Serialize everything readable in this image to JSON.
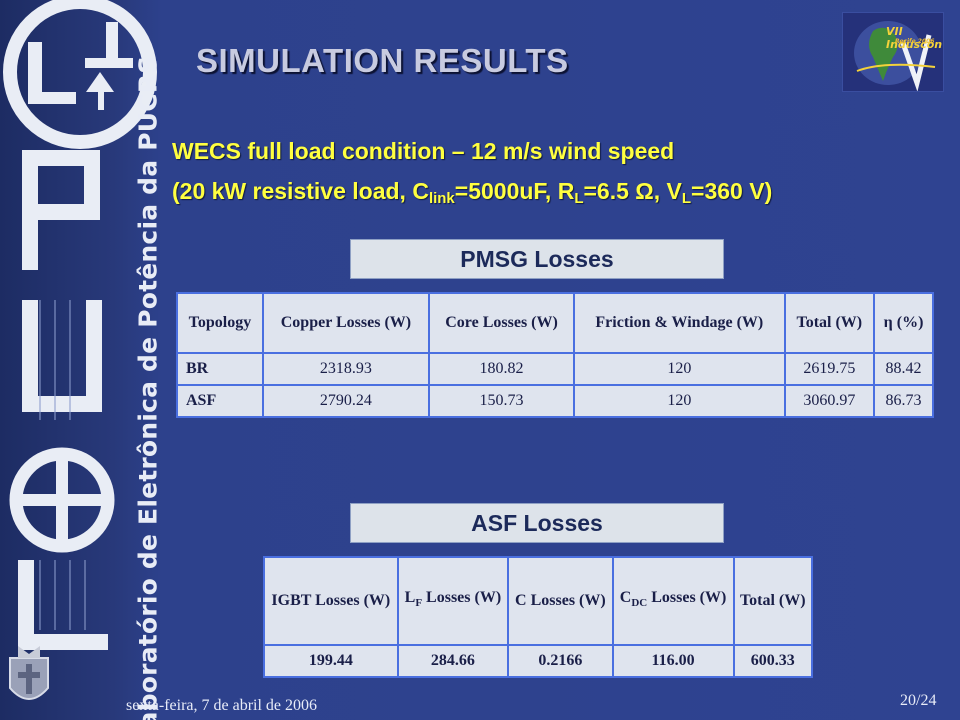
{
  "slide": {
    "title": "SIMULATION RESULTS",
    "subtitle_line1": "WECS full load condition – 12 m/s wind speed",
    "subtitle_line2": {
      "prefix": "(20 kW resistive load, C",
      "sub1": "link",
      "mid1": "=5000uF, R",
      "sub2": "L",
      "mid2": "=6.5 Ω, V",
      "sub3": "L",
      "suffix": "=360 V)"
    },
    "side_text": "Laboratório de Eletrônica de Potência da PUCRS",
    "logo_text": "LEPUC",
    "conference_logo": {
      "line1": "VII Induscon",
      "line2": "Recife 2006"
    },
    "footer_date": "sexta-feira, 7 de abril de 2006",
    "page_number": "20/24",
    "colors": {
      "background": "#2d418c",
      "subtitle": "#ffff40",
      "table_border": "#4a6fe0"
    }
  },
  "pmsg": {
    "label": "PMSG Losses",
    "headers": [
      "Topology",
      "Copper Losses (W)",
      "Core Losses (W)",
      "Friction & Windage (W)",
      "Total (W)",
      "η (%)"
    ],
    "rows": [
      [
        "BR",
        "2318.93",
        "180.82",
        "120",
        "2619.75",
        "88.42"
      ],
      [
        "ASF",
        "2790.24",
        "150.73",
        "120",
        "3060.97",
        "86.73"
      ]
    ]
  },
  "asf": {
    "label": "ASF Losses",
    "headers": {
      "igbt": "IGBT Losses (W)",
      "lf": {
        "main": "L",
        "sub": "F",
        "rest": " Losses (W)"
      },
      "c": "C Losses (W)",
      "cdc": {
        "main": "C",
        "sub": "DC",
        "rest": " Losses (W)"
      },
      "total": "Total (W)"
    },
    "values": [
      "199.44",
      "284.66",
      "0.2166",
      "116.00",
      "600.33"
    ]
  }
}
